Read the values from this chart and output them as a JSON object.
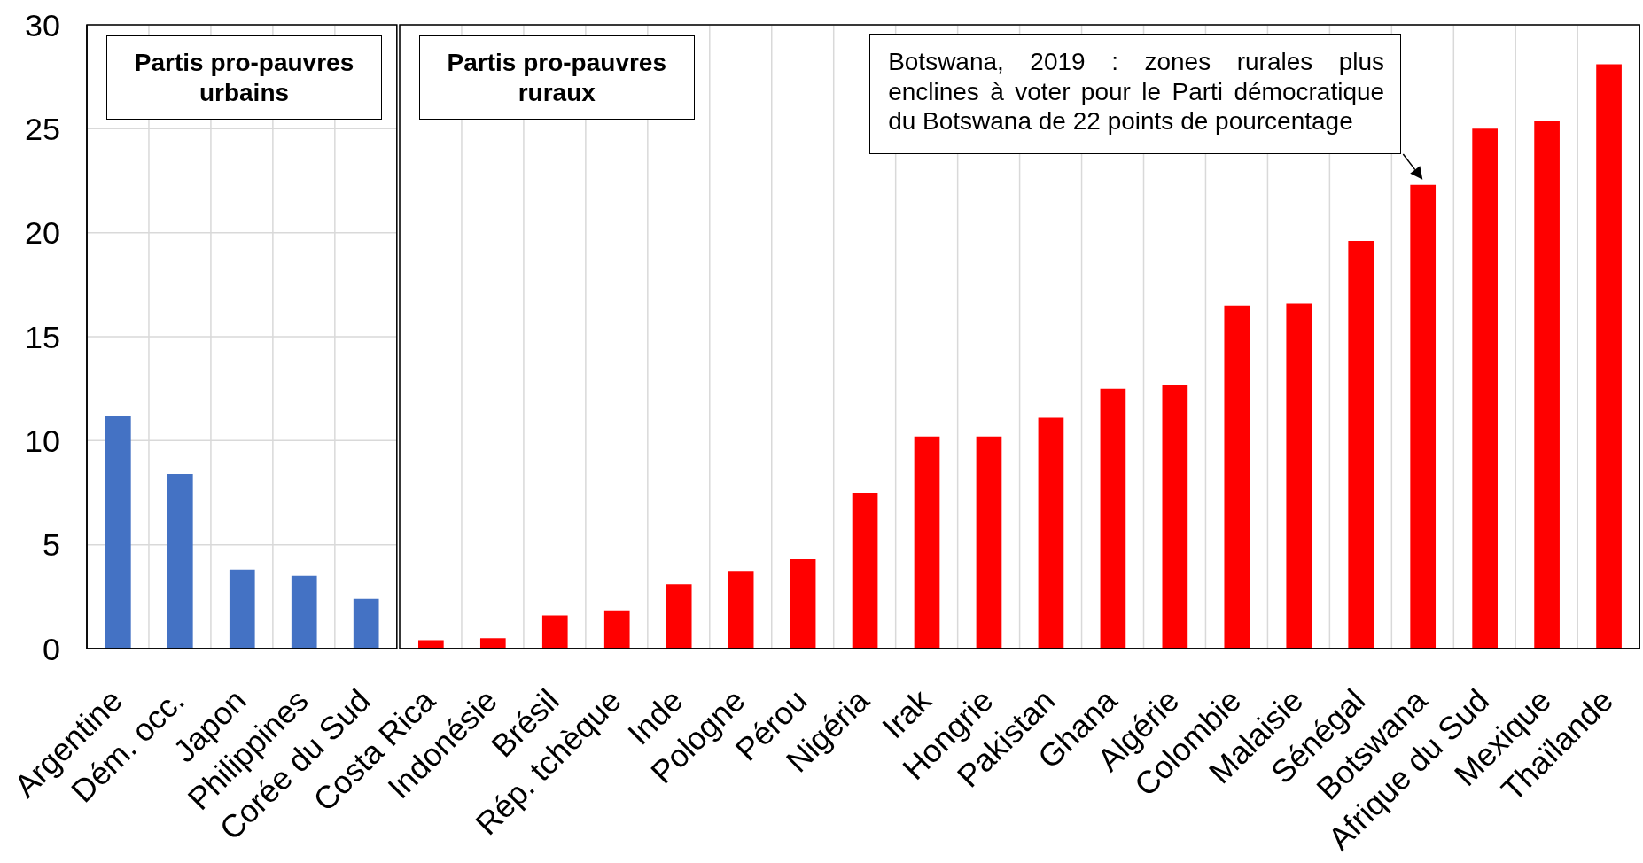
{
  "chart_data": [
    {
      "type": "bar",
      "categories": [
        "Argentine",
        "Dém. occ.",
        "Japon",
        "Philippines",
        "Corée du Sud"
      ],
      "values": [
        11.2,
        8.4,
        3.8,
        3.5,
        2.4
      ],
      "color": "#4472c4",
      "ylim": [
        0,
        30
      ],
      "yticks": [
        0,
        5,
        10,
        15,
        20,
        25,
        30
      ],
      "grid": true,
      "annotations": [
        "Partis pro-pauvres urbains"
      ]
    },
    {
      "type": "bar",
      "categories": [
        "Costa Rica",
        "Indonésie",
        "Brésil",
        "Rép. tchèque",
        "Inde",
        "Pologne",
        "Pérou",
        "Nigéria",
        "Irak",
        "Hongrie",
        "Pakistan",
        "Ghana",
        "Algérie",
        "Colombie",
        "Malaisie",
        "Sénégal",
        "Botswana",
        "Afrique du Sud",
        "Mexique",
        "Thaïlande"
      ],
      "values": [
        0.4,
        0.5,
        1.6,
        1.8,
        3.1,
        3.7,
        4.3,
        7.5,
        10.2,
        10.2,
        11.1,
        12.5,
        12.7,
        16.5,
        16.6,
        19.6,
        22.3,
        25.0,
        25.4,
        28.1
      ],
      "color": "#ff0000",
      "ylim": [
        0,
        30
      ],
      "yticks": [
        0,
        5,
        10,
        15,
        20,
        25,
        30
      ],
      "grid": true,
      "tick_labels": "x",
      "annotations": [
        "Partis pro-pauvres ruraux",
        {
          "text": "Botswana, 2019 : zones rurales plus enclines à voter pour le Parti démocratique du Botswana de 22 points de pourcentage",
          "x": "Botswana",
          "y": 22.3
        }
      ]
    }
  ]
}
